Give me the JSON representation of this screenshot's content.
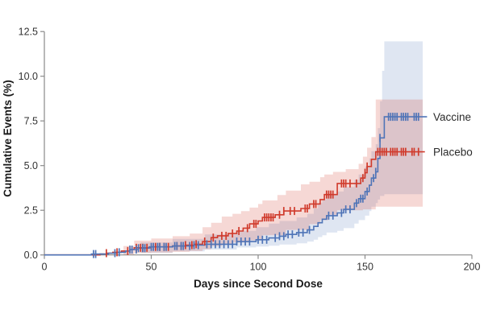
{
  "figure": {
    "background_color": "#ffffff",
    "axis_color": "#8a8a8a",
    "tick_label_color": "#333333",
    "title_color": "#1a1a1a"
  },
  "chart_data": {
    "type": "line",
    "subtype": "kaplan-meier-cumulative-incidence-steps-with-censor-ticks-and-ci-bands",
    "title": "",
    "xlabel": "Days since Second Dose",
    "ylabel": "Cumulative Events (%)",
    "xlim": [
      0,
      200
    ],
    "ylim": [
      0,
      12.5
    ],
    "grid": false,
    "legend_position": "right-end-of-curves",
    "x_ticks": {
      "values": [
        0,
        50,
        100,
        150,
        200
      ],
      "labels": [
        "0",
        "50",
        "100",
        "150",
        "200"
      ]
    },
    "y_ticks": {
      "values": [
        0,
        2.5,
        5,
        7.5,
        10,
        12.5
      ],
      "labels": [
        "0.0",
        "2.5",
        "5.0",
        "7.5",
        "10.0",
        "12.5"
      ]
    },
    "series": [
      {
        "name": "Vaccine",
        "color": "#4f74b7",
        "band_opacity": 0.18,
        "final_value_pct": 7.7,
        "final_ci_pct": [
          3.4,
          12.0
        ],
        "steps": [
          [
            0,
            0
          ],
          [
            22,
            0.05
          ],
          [
            30,
            0.1
          ],
          [
            34,
            0.15
          ],
          [
            38,
            0.22
          ],
          [
            40,
            0.3
          ],
          [
            44,
            0.38
          ],
          [
            49,
            0.45
          ],
          [
            60,
            0.5
          ],
          [
            70,
            0.55
          ],
          [
            75,
            0.6
          ],
          [
            90,
            0.75
          ],
          [
            99,
            0.85
          ],
          [
            105,
            0.95
          ],
          [
            110,
            1.05
          ],
          [
            113,
            1.15
          ],
          [
            118,
            1.25
          ],
          [
            123,
            1.4
          ],
          [
            126,
            1.6
          ],
          [
            128,
            1.8
          ],
          [
            130,
            2.0
          ],
          [
            132,
            2.2
          ],
          [
            137,
            2.35
          ],
          [
            140,
            2.55
          ],
          [
            145,
            2.9
          ],
          [
            147,
            3.15
          ],
          [
            150,
            3.55
          ],
          [
            152,
            3.9
          ],
          [
            153,
            4.3
          ],
          [
            155,
            4.65
          ],
          [
            156,
            5.4
          ],
          [
            157,
            6.55
          ],
          [
            159,
            7.73
          ],
          [
            179,
            7.73
          ]
        ],
        "censor_days": [
          23,
          24,
          33,
          35,
          40,
          41,
          43,
          44,
          46,
          47,
          50,
          51,
          53,
          54,
          56,
          57,
          61,
          62,
          64,
          65,
          68,
          70,
          72,
          76,
          78,
          80,
          82,
          84,
          86,
          88,
          90,
          92,
          94,
          96,
          100,
          102,
          104,
          108,
          110,
          112,
          114,
          116,
          119,
          121,
          124,
          133,
          135,
          139,
          141,
          143,
          146,
          148,
          149,
          151,
          154,
          155,
          157,
          161,
          162,
          163,
          164,
          165,
          167,
          168,
          169,
          170,
          173,
          174,
          175
        ],
        "ci_upper": [
          [
            45,
            0.7
          ],
          [
            60,
            0.9
          ],
          [
            75,
            1.15
          ],
          [
            90,
            1.35
          ],
          [
            99,
            1.55
          ],
          [
            105,
            1.75
          ],
          [
            110,
            1.9
          ],
          [
            118,
            2.1
          ],
          [
            123,
            2.3
          ],
          [
            126,
            2.6
          ],
          [
            128,
            2.9
          ],
          [
            130,
            3.1
          ],
          [
            132,
            3.35
          ],
          [
            137,
            3.55
          ],
          [
            140,
            3.8
          ],
          [
            145,
            4.2
          ],
          [
            147,
            4.5
          ],
          [
            150,
            4.95
          ],
          [
            152,
            5.4
          ],
          [
            153,
            5.8
          ],
          [
            155,
            6.2
          ],
          [
            156,
            7.1
          ],
          [
            157,
            8.6
          ],
          [
            158,
            10.3
          ],
          [
            159,
            11.95
          ],
          [
            177,
            11.95
          ]
        ],
        "ci_lower": [
          [
            45,
            0.12
          ],
          [
            60,
            0.2
          ],
          [
            75,
            0.3
          ],
          [
            90,
            0.42
          ],
          [
            99,
            0.47
          ],
          [
            105,
            0.52
          ],
          [
            110,
            0.58
          ],
          [
            118,
            0.65
          ],
          [
            123,
            0.75
          ],
          [
            126,
            0.85
          ],
          [
            128,
            1.0
          ],
          [
            130,
            1.1
          ],
          [
            132,
            1.25
          ],
          [
            137,
            1.35
          ],
          [
            140,
            1.5
          ],
          [
            145,
            1.75
          ],
          [
            147,
            1.95
          ],
          [
            150,
            2.2
          ],
          [
            152,
            2.45
          ],
          [
            153,
            2.7
          ],
          [
            155,
            2.9
          ],
          [
            156,
            3.1
          ],
          [
            157,
            3.3
          ],
          [
            159,
            3.4
          ],
          [
            177,
            3.4
          ]
        ]
      },
      {
        "name": "Placebo",
        "color": "#d03b2c",
        "band_opacity": 0.2,
        "final_value_pct": 5.8,
        "final_ci_pct": [
          2.7,
          8.7
        ],
        "steps": [
          [
            0,
            0
          ],
          [
            26,
            0.05
          ],
          [
            29,
            0.1
          ],
          [
            32,
            0.15
          ],
          [
            36,
            0.22
          ],
          [
            40,
            0.3
          ],
          [
            42,
            0.4
          ],
          [
            50,
            0.45
          ],
          [
            60,
            0.5
          ],
          [
            66,
            0.55
          ],
          [
            70,
            0.6
          ],
          [
            74,
            0.75
          ],
          [
            78,
            0.97
          ],
          [
            81,
            1.07
          ],
          [
            86,
            1.2
          ],
          [
            90,
            1.34
          ],
          [
            93,
            1.5
          ],
          [
            96,
            1.74
          ],
          [
            100,
            1.9
          ],
          [
            102,
            2.1
          ],
          [
            108,
            2.25
          ],
          [
            112,
            2.46
          ],
          [
            120,
            2.6
          ],
          [
            124,
            2.85
          ],
          [
            129,
            3.1
          ],
          [
            131,
            3.38
          ],
          [
            137,
            4.0
          ],
          [
            148,
            4.3
          ],
          [
            150,
            4.6
          ],
          [
            151,
            4.95
          ],
          [
            153,
            5.35
          ],
          [
            155,
            5.77
          ],
          [
            178,
            5.77
          ]
        ],
        "censor_days": [
          29,
          34,
          39,
          43,
          45,
          46,
          48,
          52,
          54,
          56,
          58,
          62,
          64,
          66,
          69,
          71,
          75,
          79,
          83,
          85,
          88,
          91,
          95,
          98,
          99,
          103,
          104,
          105,
          106,
          107,
          110,
          112,
          115,
          117,
          122,
          123,
          126,
          127,
          132,
          133,
          134,
          135,
          139,
          140,
          141,
          143,
          146,
          149,
          150,
          151,
          156,
          157,
          158,
          159,
          160,
          162,
          163,
          164,
          165,
          167,
          168,
          169,
          172,
          173,
          175
        ],
        "ci_upper": [
          [
            37,
            0.5
          ],
          [
            42,
            0.8
          ],
          [
            50,
            0.92
          ],
          [
            60,
            1.05
          ],
          [
            68,
            1.2
          ],
          [
            74,
            1.55
          ],
          [
            78,
            1.8
          ],
          [
            83,
            2.15
          ],
          [
            88,
            2.3
          ],
          [
            92,
            2.45
          ],
          [
            96,
            2.65
          ],
          [
            100,
            2.85
          ],
          [
            102,
            3.05
          ],
          [
            109,
            3.35
          ],
          [
            113,
            3.6
          ],
          [
            120,
            3.95
          ],
          [
            124,
            4.1
          ],
          [
            129,
            4.35
          ],
          [
            131,
            4.5
          ],
          [
            135,
            4.65
          ],
          [
            141,
            4.8
          ],
          [
            147,
            5.1
          ],
          [
            149,
            5.5
          ],
          [
            151,
            6.0
          ],
          [
            153,
            6.6
          ],
          [
            155,
            8.7
          ],
          [
            177,
            8.7
          ]
        ],
        "ci_lower": [
          [
            37,
            0.02
          ],
          [
            42,
            0.1
          ],
          [
            50,
            0.13
          ],
          [
            60,
            0.17
          ],
          [
            68,
            0.22
          ],
          [
            74,
            0.32
          ],
          [
            78,
            0.5
          ],
          [
            83,
            0.62
          ],
          [
            88,
            0.7
          ],
          [
            96,
            0.82
          ],
          [
            102,
            1.1
          ],
          [
            113,
            1.4
          ],
          [
            124,
            1.72
          ],
          [
            129,
            1.95
          ],
          [
            133,
            2.25
          ],
          [
            137,
            2.5
          ],
          [
            149,
            2.55
          ],
          [
            155,
            2.7
          ],
          [
            177,
            2.7
          ]
        ]
      }
    ]
  }
}
